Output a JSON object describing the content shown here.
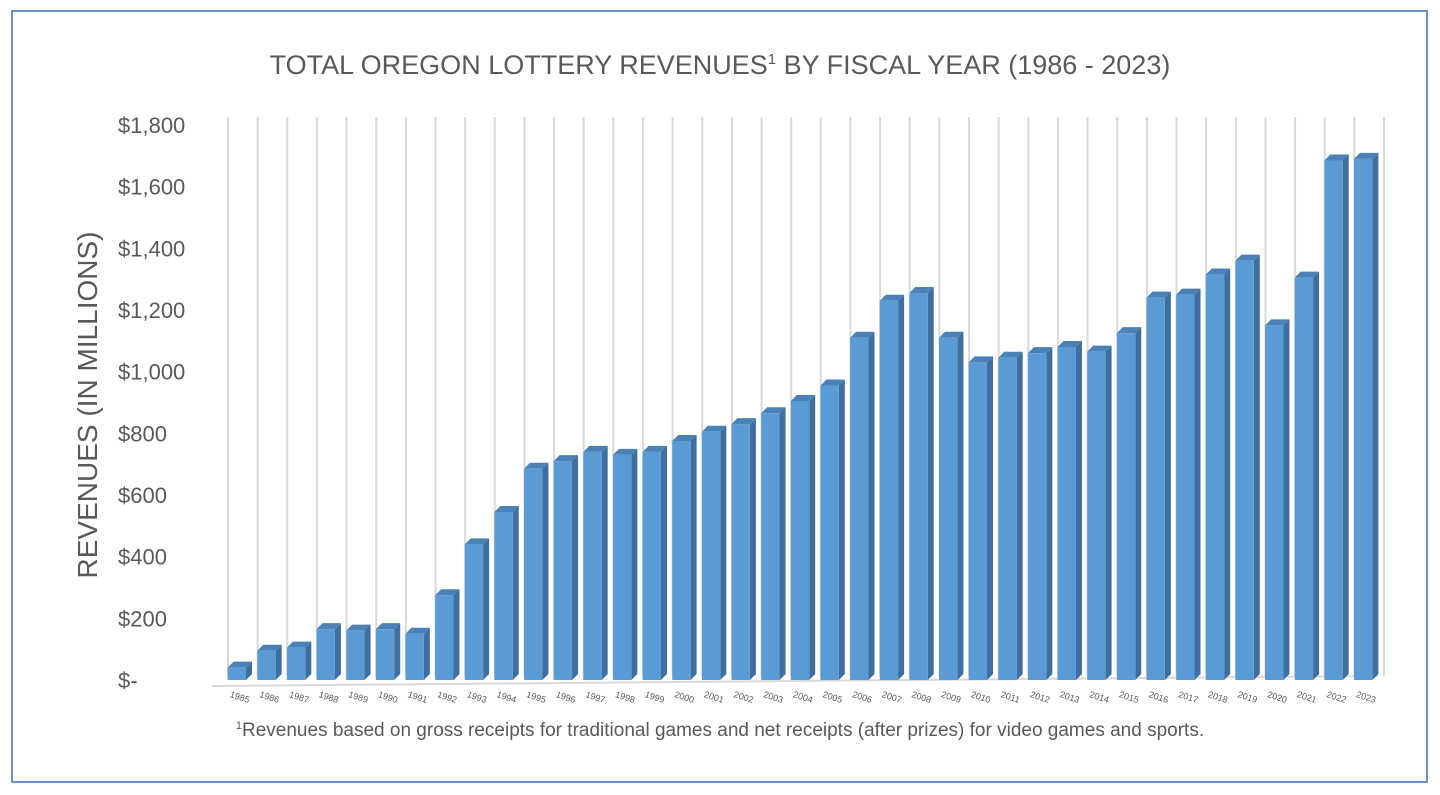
{
  "chart_data": {
    "type": "bar",
    "title": "TOTAL OREGON LOTTERY REVENUES",
    "title_superscript": "1",
    "title_suffix": " BY FISCAL YEAR (1986 - 2023)",
    "xlabel": "",
    "ylabel": "REVENUES (IN MILLIONS)",
    "ylim": [
      0,
      1800
    ],
    "y_ticks": [
      0,
      200,
      400,
      600,
      800,
      1000,
      1200,
      1400,
      1600,
      1800
    ],
    "y_tick_labels": [
      "$-",
      "$200",
      "$400",
      "$600",
      "$800",
      "$1,000",
      "$1,200",
      "$1,400",
      "$1,600",
      "$1,800"
    ],
    "grid": "vertical",
    "legend": "none",
    "bar_color": "#5b9bd5",
    "bar_side_color": "#3f6f9e",
    "bar_top_color": "#4a82b8",
    "categories": [
      "1985",
      "1986",
      "1987",
      "1988",
      "1989",
      "1990",
      "1991",
      "1992",
      "1993",
      "1994",
      "1995",
      "1996",
      "1997",
      "1998",
      "1999",
      "2000",
      "2001",
      "2002",
      "2003",
      "2004",
      "2005",
      "2006",
      "2007",
      "2008",
      "2009",
      "2010",
      "2011",
      "2012",
      "2013",
      "2014",
      "2015",
      "2016",
      "2017",
      "2018",
      "2019",
      "2020",
      "2021",
      "2022",
      "2023"
    ],
    "values": [
      40,
      95,
      105,
      165,
      160,
      165,
      150,
      275,
      440,
      545,
      685,
      710,
      740,
      730,
      740,
      775,
      805,
      830,
      865,
      905,
      955,
      1110,
      1230,
      1255,
      1110,
      1030,
      1045,
      1060,
      1080,
      1065,
      1125,
      1240,
      1250,
      1315,
      1360,
      1150,
      1305,
      1685,
      1690
    ],
    "footnote_superscript": "1",
    "footnote": "Revenues based on gross receipts for traditional games and net receipts (after prizes) for video games and sports."
  }
}
